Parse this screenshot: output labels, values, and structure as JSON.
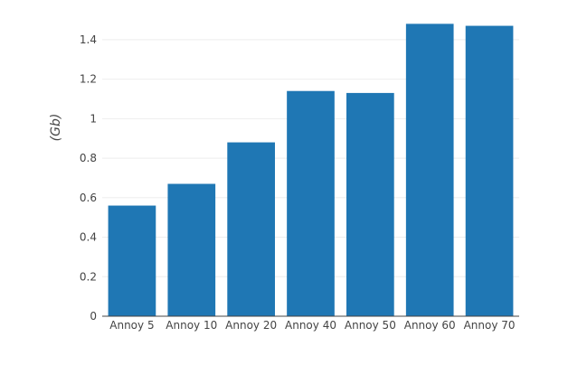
{
  "chart_data": {
    "type": "bar",
    "title": "",
    "xlabel": "",
    "ylabel": "(Gb)",
    "categories": [
      "Annoy 5",
      "Annoy 10",
      "Annoy 20",
      "Annoy 40",
      "Annoy 50",
      "Annoy 60",
      "Annoy 70"
    ],
    "values": [
      0.56,
      0.67,
      0.88,
      1.14,
      1.13,
      1.48,
      1.47
    ],
    "ylim": [
      0,
      1.5
    ],
    "yticks": [
      0,
      0.2,
      0.4,
      0.6,
      0.8,
      1,
      1.2,
      1.4
    ],
    "ytick_labels": [
      "0",
      "0.2",
      "0.4",
      "0.6",
      "0.8",
      "1",
      "1.2",
      "1.4"
    ],
    "grid": true,
    "legend": "none",
    "colors": {
      "bar": "#1f77b4",
      "grid": "#eeeeee",
      "axis_line": "#444444",
      "text": "#444444"
    }
  }
}
